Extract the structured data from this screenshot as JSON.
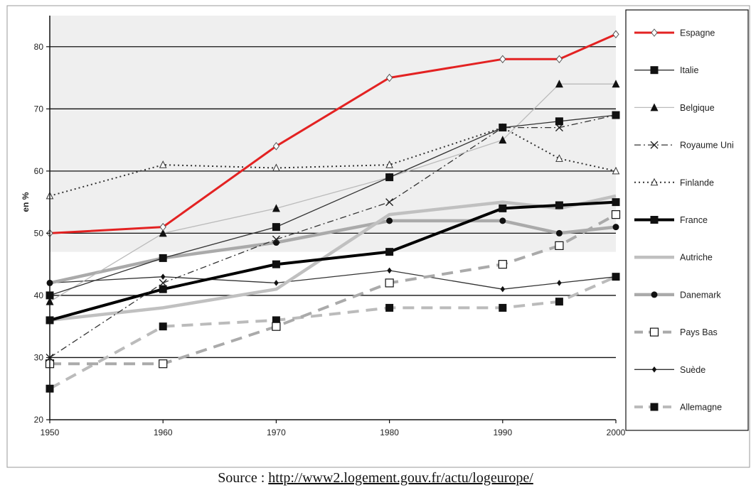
{
  "chart_data": {
    "type": "line",
    "title": "",
    "ylabel": "en %",
    "xlabel": "",
    "x": [
      1950,
      1960,
      1970,
      1980,
      1990,
      1995,
      2000
    ],
    "xticks": [
      "1950",
      "1960",
      "1970",
      "1980",
      "1990",
      "2000"
    ],
    "yticks": [
      "20",
      "30",
      "40",
      "50",
      "60",
      "70",
      "80"
    ],
    "ylim": [
      20,
      85
    ],
    "grid": "horizontal",
    "legend_position": "right",
    "series": [
      {
        "name": "Espagne",
        "color": "#e32222",
        "marker": "diamond-open",
        "style": "solid-thick",
        "values": [
          50,
          51,
          64,
          75,
          78,
          78,
          82
        ]
      },
      {
        "name": "Italie",
        "color": "#333333",
        "marker": "square-filled",
        "style": "solid",
        "values": [
          40,
          46,
          51,
          59,
          67,
          68,
          69
        ]
      },
      {
        "name": "Belgique",
        "color": "#bbbbbb",
        "marker": "triangle-filled",
        "style": "solid",
        "values": [
          39,
          50,
          54,
          59,
          65,
          74,
          74
        ]
      },
      {
        "name": "Royaume Uni",
        "color": "#333333",
        "marker": "x",
        "style": "dash-dot",
        "values": [
          30,
          42,
          49,
          55,
          67,
          67,
          69
        ]
      },
      {
        "name": "Finlande",
        "color": "#333333",
        "marker": "triangle-open",
        "style": "dotted",
        "values": [
          56,
          61,
          60.5,
          61,
          67,
          62,
          60
        ]
      },
      {
        "name": "France",
        "color": "#000000",
        "marker": "square-filled",
        "style": "solid-thick",
        "values": [
          36,
          41,
          45,
          47,
          54,
          54.5,
          55
        ]
      },
      {
        "name": "Autriche",
        "color": "#c0c0c0",
        "marker": "none",
        "style": "solid-thick",
        "values": [
          36,
          38,
          41,
          53,
          55,
          54,
          56
        ]
      },
      {
        "name": "Danemark",
        "color": "#aaaaaa",
        "marker": "circle-filled",
        "style": "solid-thick",
        "values": [
          42,
          46,
          48.5,
          52,
          52,
          50,
          51
        ]
      },
      {
        "name": "Pays Bas",
        "color": "#aaaaaa",
        "marker": "square-open",
        "style": "dashed",
        "values": [
          29,
          29,
          35,
          42,
          45,
          48,
          53
        ]
      },
      {
        "name": "Suède",
        "color": "#333333",
        "marker": "diamond-small",
        "style": "solid",
        "values": [
          42,
          43,
          42,
          44,
          41,
          42,
          43
        ]
      },
      {
        "name": "Allemagne",
        "color": "#bbbbbb",
        "marker": "square-filled",
        "style": "dashed",
        "values": [
          25,
          35,
          36,
          38,
          38,
          39,
          43
        ]
      }
    ]
  },
  "source": {
    "prefix": "Source : ",
    "url_text": "http://www2.logement.gouv.fr/actu/logeurope/"
  }
}
